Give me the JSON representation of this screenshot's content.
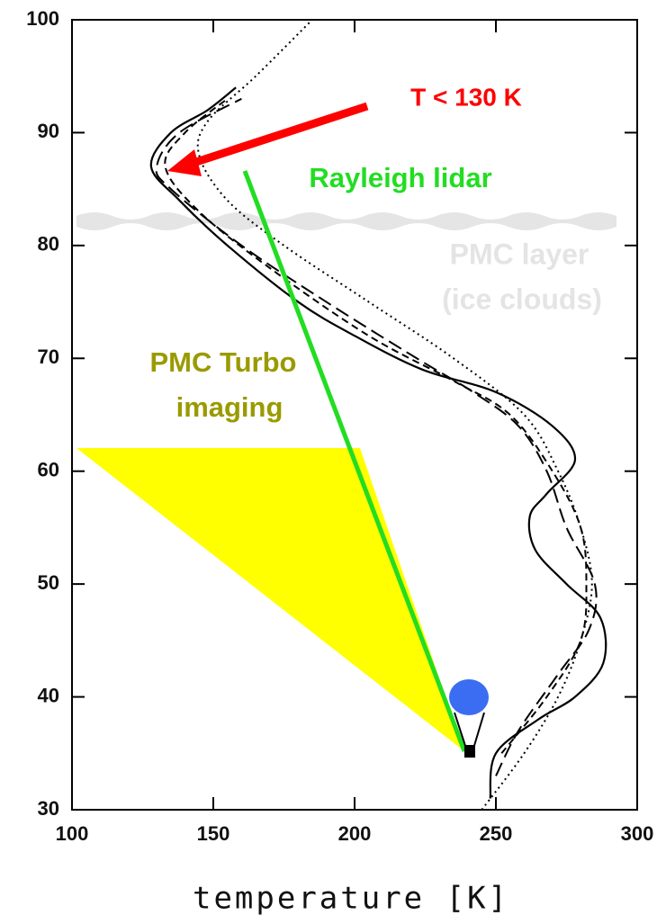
{
  "chart_data": {
    "type": "line",
    "xlabel": "temperature [K]",
    "xlim": [
      100,
      300
    ],
    "xticks": [
      100,
      150,
      200,
      250,
      300
    ],
    "ylim": [
      30,
      100
    ],
    "yticks": [
      30,
      40,
      50,
      60,
      70,
      80,
      90,
      100
    ],
    "series": [
      {
        "color": "#000000",
        "style": "solid",
        "x": [
          248,
          250,
          265,
          278,
          288,
          287,
          275,
          264,
          262,
          268,
          278,
          270,
          250,
          224,
          200,
          180,
          155,
          138,
          128,
          135,
          148,
          158
        ],
        "values": [
          31,
          35,
          38,
          40,
          43,
          47,
          50,
          53,
          56,
          58,
          61,
          64,
          67,
          69,
          72,
          75,
          80,
          84,
          87,
          90,
          92,
          94
        ]
      },
      {
        "color": "#000000",
        "style": "longdash",
        "x": [
          250,
          258,
          272,
          283,
          285,
          275,
          268,
          258,
          242,
          222,
          190,
          160,
          135,
          130,
          138,
          160
        ],
        "values": [
          33,
          37,
          42,
          46,
          50,
          55,
          60,
          64,
          67,
          70,
          75,
          80,
          85,
          87,
          90,
          93
        ]
      },
      {
        "color": "#000000",
        "style": "shortdash",
        "x": [
          252,
          268,
          280,
          282,
          280,
          270,
          255,
          235,
          205,
          170,
          145,
          133,
          140,
          155
        ],
        "values": [
          35,
          40,
          45,
          50,
          55,
          60,
          65,
          68,
          72,
          78,
          83,
          87,
          90,
          93
        ]
      },
      {
        "color": "#000000",
        "style": "dotted",
        "x": [
          245,
          260,
          272,
          280,
          284,
          280,
          272,
          260,
          235,
          205,
          175,
          155,
          145,
          148,
          165,
          185
        ],
        "values": [
          30,
          35,
          40,
          45,
          50,
          55,
          60,
          65,
          70,
          75,
          80,
          84,
          88,
          91,
          95,
          100
        ]
      }
    ],
    "annotations": {
      "temperature": "T < 130 K",
      "lidar": "Rayleigh lidar",
      "pmc_layer": [
        "PMC layer",
        "(ice clouds)"
      ],
      "imaging": [
        "PMC Turbo",
        "imaging"
      ]
    }
  }
}
